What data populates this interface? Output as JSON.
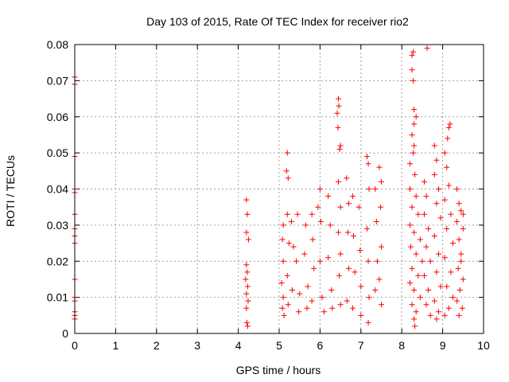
{
  "chart_data": {
    "type": "scatter",
    "title": "Day 103 of 2015, Rate Of TEC Index for receiver rio2",
    "xlabel": "GPS time / hours",
    "ylabel": "ROTI / TECUs",
    "xlim": [
      0,
      10
    ],
    "ylim": [
      0,
      0.08
    ],
    "xticks": [
      "0",
      "1",
      "2",
      "3",
      "4",
      "5",
      "6",
      "7",
      "8",
      "9",
      "10"
    ],
    "yticks": [
      "0",
      "0.01",
      "0.02",
      "0.03",
      "0.04",
      "0.05",
      "0.06",
      "0.07",
      "0.08"
    ],
    "grid": true,
    "marker": "+",
    "color": "#ff0000",
    "series": [
      {
        "name": "rio2",
        "points": [
          [
            0.0,
            0.071
          ],
          [
            0.0,
            0.069
          ],
          [
            0.0,
            0.049
          ],
          [
            0.0,
            0.04
          ],
          [
            0.0,
            0.039
          ],
          [
            0.0,
            0.033
          ],
          [
            0.0,
            0.029
          ],
          [
            0.0,
            0.027
          ],
          [
            0.0,
            0.025
          ],
          [
            0.0,
            0.015
          ],
          [
            0.0,
            0.01
          ],
          [
            0.0,
            0.009
          ],
          [
            0.0,
            0.006
          ],
          [
            0.0,
            0.005
          ],
          [
            0.0,
            0.004
          ],
          [
            4.2,
            0.037
          ],
          [
            4.22,
            0.033
          ],
          [
            4.2,
            0.028
          ],
          [
            4.25,
            0.026
          ],
          [
            4.2,
            0.019
          ],
          [
            4.22,
            0.017
          ],
          [
            4.18,
            0.015
          ],
          [
            4.23,
            0.013
          ],
          [
            4.2,
            0.011
          ],
          [
            4.24,
            0.009
          ],
          [
            4.2,
            0.007
          ],
          [
            4.21,
            0.003
          ],
          [
            4.23,
            0.002
          ],
          [
            5.1,
            0.03
          ],
          [
            5.08,
            0.026
          ],
          [
            5.1,
            0.02
          ],
          [
            5.06,
            0.014
          ],
          [
            5.1,
            0.01
          ],
          [
            5.08,
            0.007
          ],
          [
            5.12,
            0.005
          ],
          [
            5.2,
            0.05
          ],
          [
            5.18,
            0.045
          ],
          [
            5.22,
            0.043
          ],
          [
            5.2,
            0.033
          ],
          [
            5.24,
            0.025
          ],
          [
            5.2,
            0.016
          ],
          [
            5.22,
            0.008
          ],
          [
            5.3,
            0.031
          ],
          [
            5.35,
            0.024
          ],
          [
            5.32,
            0.012
          ],
          [
            5.45,
            0.033
          ],
          [
            5.42,
            0.02
          ],
          [
            5.5,
            0.011
          ],
          [
            5.48,
            0.006
          ],
          [
            5.65,
            0.03
          ],
          [
            5.62,
            0.022
          ],
          [
            5.7,
            0.013
          ],
          [
            5.68,
            0.007
          ],
          [
            5.8,
            0.033
          ],
          [
            5.82,
            0.026
          ],
          [
            5.85,
            0.018
          ],
          [
            5.8,
            0.009
          ],
          [
            5.95,
            0.035
          ],
          [
            6.0,
            0.04
          ],
          [
            6.02,
            0.031
          ],
          [
            6.0,
            0.02
          ],
          [
            6.05,
            0.01
          ],
          [
            6.1,
            0.006
          ],
          [
            6.2,
            0.038
          ],
          [
            6.25,
            0.03
          ],
          [
            6.2,
            0.021
          ],
          [
            6.28,
            0.012
          ],
          [
            6.3,
            0.007
          ],
          [
            6.45,
            0.065
          ],
          [
            6.46,
            0.063
          ],
          [
            6.42,
            0.061
          ],
          [
            6.44,
            0.057
          ],
          [
            6.5,
            0.052
          ],
          [
            6.48,
            0.051
          ],
          [
            6.45,
            0.042
          ],
          [
            6.5,
            0.035
          ],
          [
            6.45,
            0.028
          ],
          [
            6.5,
            0.022
          ],
          [
            6.47,
            0.016
          ],
          [
            6.5,
            0.008
          ],
          [
            6.65,
            0.043
          ],
          [
            6.7,
            0.036
          ],
          [
            6.68,
            0.028
          ],
          [
            6.7,
            0.018
          ],
          [
            6.66,
            0.009
          ],
          [
            6.8,
            0.038
          ],
          [
            6.82,
            0.027
          ],
          [
            6.85,
            0.017
          ],
          [
            6.8,
            0.007
          ],
          [
            6.95,
            0.035
          ],
          [
            6.98,
            0.023
          ],
          [
            7.0,
            0.013
          ],
          [
            7.0,
            0.005
          ],
          [
            7.15,
            0.049
          ],
          [
            7.18,
            0.047
          ],
          [
            7.2,
            0.04
          ],
          [
            7.15,
            0.029
          ],
          [
            7.18,
            0.02
          ],
          [
            7.2,
            0.01
          ],
          [
            7.18,
            0.003
          ],
          [
            7.35,
            0.04
          ],
          [
            7.38,
            0.031
          ],
          [
            7.4,
            0.02
          ],
          [
            7.35,
            0.012
          ],
          [
            7.45,
            0.046
          ],
          [
            7.5,
            0.042
          ],
          [
            7.48,
            0.035
          ],
          [
            7.5,
            0.024
          ],
          [
            7.45,
            0.015
          ],
          [
            7.5,
            0.008
          ],
          [
            8.25,
            0.077
          ],
          [
            8.28,
            0.078
          ],
          [
            8.25,
            0.073
          ],
          [
            8.28,
            0.07
          ],
          [
            8.62,
            0.079
          ],
          [
            8.3,
            0.062
          ],
          [
            8.35,
            0.06
          ],
          [
            8.3,
            0.058
          ],
          [
            8.25,
            0.055
          ],
          [
            8.3,
            0.052
          ],
          [
            8.28,
            0.05
          ],
          [
            8.2,
            0.047
          ],
          [
            8.32,
            0.044
          ],
          [
            8.2,
            0.04
          ],
          [
            8.35,
            0.038
          ],
          [
            8.25,
            0.035
          ],
          [
            8.4,
            0.033
          ],
          [
            8.2,
            0.03
          ],
          [
            8.3,
            0.028
          ],
          [
            8.45,
            0.026
          ],
          [
            8.22,
            0.024
          ],
          [
            8.35,
            0.022
          ],
          [
            8.5,
            0.02
          ],
          [
            8.25,
            0.018
          ],
          [
            8.4,
            0.016
          ],
          [
            8.2,
            0.014
          ],
          [
            8.3,
            0.012
          ],
          [
            8.45,
            0.01
          ],
          [
            8.25,
            0.008
          ],
          [
            8.35,
            0.006
          ],
          [
            8.3,
            0.004
          ],
          [
            8.32,
            0.002
          ],
          [
            8.55,
            0.042
          ],
          [
            8.6,
            0.038
          ],
          [
            8.55,
            0.033
          ],
          [
            8.65,
            0.029
          ],
          [
            8.6,
            0.024
          ],
          [
            8.7,
            0.02
          ],
          [
            8.55,
            0.016
          ],
          [
            8.65,
            0.012
          ],
          [
            8.6,
            0.008
          ],
          [
            8.7,
            0.005
          ],
          [
            8.8,
            0.052
          ],
          [
            8.85,
            0.048
          ],
          [
            8.8,
            0.044
          ],
          [
            8.9,
            0.04
          ],
          [
            8.85,
            0.036
          ],
          [
            8.95,
            0.032
          ],
          [
            8.8,
            0.027
          ],
          [
            8.9,
            0.022
          ],
          [
            8.85,
            0.017
          ],
          [
            8.95,
            0.013
          ],
          [
            8.8,
            0.009
          ],
          [
            8.9,
            0.006
          ],
          [
            8.85,
            0.004
          ],
          [
            9.05,
            0.05
          ],
          [
            9.15,
            0.057
          ],
          [
            9.18,
            0.058
          ],
          [
            9.12,
            0.054
          ],
          [
            9.1,
            0.046
          ],
          [
            9.15,
            0.041
          ],
          [
            9.05,
            0.037
          ],
          [
            9.2,
            0.033
          ],
          [
            9.1,
            0.029
          ],
          [
            9.25,
            0.025
          ],
          [
            9.05,
            0.021
          ],
          [
            9.2,
            0.017
          ],
          [
            9.1,
            0.013
          ],
          [
            9.25,
            0.01
          ],
          [
            9.15,
            0.007
          ],
          [
            9.05,
            0.005
          ],
          [
            9.35,
            0.04
          ],
          [
            9.4,
            0.036
          ],
          [
            9.45,
            0.034
          ],
          [
            9.35,
            0.031
          ],
          [
            9.5,
            0.029
          ],
          [
            9.4,
            0.026
          ],
          [
            9.45,
            0.022
          ],
          [
            9.38,
            0.018
          ],
          [
            9.5,
            0.015
          ],
          [
            9.42,
            0.012
          ],
          [
            9.35,
            0.009
          ],
          [
            9.48,
            0.007
          ],
          [
            9.4,
            0.005
          ],
          [
            9.5,
            0.033
          ],
          [
            9.45,
            0.02
          ]
        ]
      }
    ]
  }
}
